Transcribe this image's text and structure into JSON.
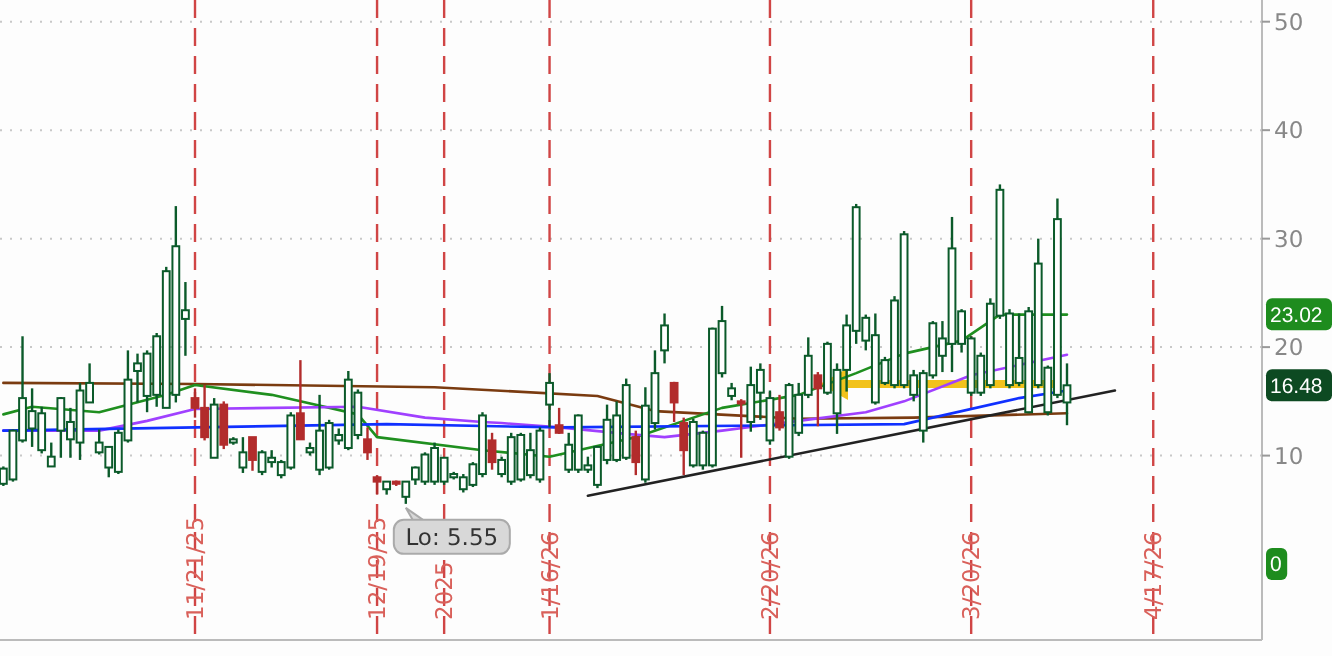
{
  "chart_data": {
    "type": "candlestick",
    "categories": [
      null,
      null,
      null,
      null,
      null,
      null,
      null,
      null,
      null,
      null,
      null,
      null,
      null,
      null,
      null,
      null,
      null,
      null,
      null,
      null,
      "11/21/25",
      null,
      null,
      null,
      null,
      null,
      null,
      null,
      null,
      null,
      null,
      null,
      null,
      null,
      null,
      null,
      null,
      null,
      null,
      "12/19/25",
      null,
      null,
      null,
      null,
      null,
      null,
      "2025",
      null,
      null,
      null,
      null,
      null,
      null,
      null,
      null,
      null,
      null,
      "1/16/26",
      null,
      null,
      null,
      null,
      null,
      null,
      null,
      null,
      null,
      null,
      null,
      null,
      null,
      null,
      null,
      null,
      null,
      null,
      null,
      null,
      null,
      null,
      "2/20/26",
      null,
      null,
      null,
      null,
      null,
      null,
      null,
      null,
      null,
      null,
      null,
      null,
      null,
      null,
      null,
      null,
      null,
      null,
      null,
      null,
      "3/20/26",
      null,
      null,
      null,
      null,
      null,
      null,
      null,
      null,
      null,
      null,
      null,
      null,
      null,
      null,
      null,
      null,
      null,
      null,
      "4/17/26",
      null,
      null,
      null,
      null,
      null,
      null,
      null,
      null,
      null,
      null,
      null
    ],
    "ohlc": [
      [
        7.4,
        9.0,
        7.2,
        8.8
      ],
      [
        7.8,
        12.4,
        7.6,
        12.3
      ],
      [
        11.4,
        21,
        11.2,
        15.3
      ],
      [
        12.5,
        16.2,
        10.8,
        14.1
      ],
      [
        10.5,
        14.5,
        10.2,
        13.9
      ],
      [
        9.0,
        11.2,
        9.0,
        9.9
      ],
      [
        12.3,
        15.4,
        9.8,
        15.3
      ],
      [
        11.5,
        14.4,
        9.8,
        13.1
      ],
      [
        11.2,
        16.7,
        9.6,
        16.0
      ],
      [
        14.9,
        18.5,
        14.9,
        16.7
      ],
      [
        10.3,
        12.4,
        10.1,
        11.2
      ],
      [
        8.9,
        10.8,
        8.0,
        10.8
      ],
      [
        8.5,
        12.4,
        8.3,
        12.1
      ],
      [
        11.4,
        19.7,
        11.2,
        17.0
      ],
      [
        17.8,
        19.4,
        14.9,
        18.5
      ],
      [
        15.5,
        19.7,
        14.0,
        19.4
      ],
      [
        15.6,
        21.3,
        14.5,
        21.0
      ],
      [
        14.4,
        27.4,
        14.4,
        27.0
      ],
      [
        15.6,
        33.0,
        14.9,
        29.3
      ],
      [
        22.6,
        26.0,
        19.2,
        23.4
      ],
      [
        15.3,
        16.2,
        13.5,
        14.4
      ],
      [
        14.4,
        16.5,
        11.4,
        11.7
      ],
      [
        9.8,
        15.3,
        9.8,
        14.7
      ],
      [
        14.7,
        15.0,
        10.6,
        11.0
      ],
      [
        11.2,
        11.7,
        11.0,
        11.5
      ],
      [
        8.9,
        11.7,
        8.4,
        10.3
      ],
      [
        11.7,
        11.7,
        8.6,
        9.6
      ],
      [
        8.5,
        10.5,
        8.2,
        10.3
      ],
      [
        9.4,
        10.5,
        8.9,
        9.8
      ],
      [
        8.2,
        9.6,
        7.9,
        9.4
      ],
      [
        8.9,
        14.0,
        8.7,
        13.7
      ],
      [
        13.9,
        18.8,
        11.5,
        11.5
      ],
      [
        10.3,
        11.2,
        10.0,
        10.7
      ],
      [
        8.7,
        15.6,
        8.2,
        12.3
      ],
      [
        8.9,
        13.3,
        8.7,
        13.0
      ],
      [
        11.4,
        12.5,
        11.0,
        11.9
      ],
      [
        10.7,
        17.8,
        10.5,
        17.0
      ],
      [
        11.9,
        16.1,
        11.5,
        15.8
      ],
      [
        11.5,
        12.6,
        9.6,
        10.3
      ],
      [
        8.0,
        8.2,
        6.4,
        7.6
      ],
      [
        6.9,
        7.6,
        6.4,
        7.6
      ],
      [
        7.6,
        7.7,
        7.2,
        7.4
      ],
      [
        6.2,
        7.6,
        5.55,
        7.6
      ],
      [
        7.8,
        9.0,
        7.3,
        8.9
      ],
      [
        7.6,
        10.3,
        7.3,
        10.1
      ],
      [
        7.6,
        11.2,
        7.3,
        10.7
      ],
      [
        7.6,
        9.8,
        7.3,
        9.8
      ],
      [
        8.0,
        8.5,
        7.8,
        8.3
      ],
      [
        6.9,
        8.3,
        6.6,
        8.0
      ],
      [
        7.3,
        9.4,
        7.1,
        9.2
      ],
      [
        8.3,
        14.0,
        8.0,
        13.7
      ],
      [
        11.4,
        12.1,
        8.7,
        9.4
      ],
      [
        8.3,
        9.9,
        8.0,
        9.6
      ],
      [
        7.6,
        12.1,
        7.3,
        11.7
      ],
      [
        7.8,
        12.1,
        7.6,
        11.9
      ],
      [
        8.2,
        12.1,
        7.9,
        10.5
      ],
      [
        7.8,
        12.6,
        7.5,
        12.3
      ],
      [
        14.7,
        17.6,
        12.6,
        16.7
      ],
      [
        12.8,
        14.4,
        12.0,
        12.1
      ],
      [
        8.7,
        12.1,
        8.4,
        11.0
      ],
      [
        8.7,
        13.8,
        8.4,
        13.7
      ],
      [
        8.7,
        9.9,
        8.4,
        9.1
      ],
      [
        7.3,
        10.9,
        7.0,
        10.8
      ],
      [
        9.6,
        14.7,
        9.2,
        13.3
      ],
      [
        9.6,
        15.0,
        9.4,
        13.7
      ],
      [
        9.8,
        17.1,
        9.6,
        16.5
      ],
      [
        11.7,
        12.3,
        8.2,
        9.4
      ],
      [
        7.8,
        16.3,
        7.5,
        14.6
      ],
      [
        13.0,
        19.7,
        12.4,
        17.6
      ],
      [
        19.7,
        23.1,
        18.5,
        22.0
      ],
      [
        16.7,
        16.8,
        13.1,
        14.9
      ],
      [
        13.0,
        13.5,
        8.2,
        10.5
      ],
      [
        9.1,
        13.4,
        8.9,
        13.1
      ],
      [
        9.1,
        12.3,
        8.7,
        12.1
      ],
      [
        9.1,
        21.8,
        8.9,
        21.7
      ],
      [
        17.6,
        23.8,
        17.2,
        22.4
      ],
      [
        15.5,
        16.7,
        15.1,
        16.2
      ],
      [
        15.0,
        15.2,
        9.8,
        14.8
      ],
      [
        13.1,
        18.2,
        12.2,
        16.5
      ],
      [
        15.8,
        18.5,
        13.3,
        17.9
      ],
      [
        11.4,
        16.0,
        11.0,
        15.3
      ],
      [
        14.0,
        15.6,
        12.3,
        12.6
      ],
      [
        9.9,
        16.7,
        9.7,
        16.5
      ],
      [
        12.1,
        16.7,
        11.8,
        15.6
      ],
      [
        15.6,
        20.9,
        15.3,
        19.2
      ],
      [
        17.4,
        17.7,
        12.7,
        16.2
      ],
      [
        15.8,
        20.5,
        15.6,
        20.3
      ],
      [
        13.9,
        18.5,
        12.0,
        17.9
      ],
      [
        17.9,
        23.0,
        15.9,
        22.0
      ],
      [
        21.5,
        33.2,
        20.3,
        32.9
      ],
      [
        20.6,
        23.0,
        19.7,
        22.7
      ],
      [
        14.9,
        23.1,
        14.7,
        21.1
      ],
      [
        16.7,
        19.1,
        16.5,
        18.8
      ],
      [
        16.5,
        24.7,
        16.2,
        24.3
      ],
      [
        16.5,
        30.7,
        16.2,
        30.4
      ],
      [
        15.6,
        17.9,
        15.0,
        17.4
      ],
      [
        12.3,
        17.9,
        11.2,
        17.6
      ],
      [
        17.4,
        22.4,
        17.1,
        22.2
      ],
      [
        19.2,
        22.4,
        17.7,
        20.8
      ],
      [
        20.3,
        32.0,
        17.7,
        29.1
      ],
      [
        20.3,
        23.5,
        19.5,
        23.3
      ],
      [
        15.8,
        21.0,
        15.5,
        20.8
      ],
      [
        15.8,
        19.5,
        15.5,
        19.2
      ],
      [
        16.5,
        24.5,
        16.2,
        24.0
      ],
      [
        22.9,
        35.0,
        22.6,
        34.5
      ],
      [
        16.5,
        23.5,
        16.2,
        23.1
      ],
      [
        16.7,
        23.1,
        16.4,
        19.0
      ],
      [
        14.0,
        23.7,
        13.9,
        23.3
      ],
      [
        16.5,
        30.0,
        16.2,
        27.7
      ],
      [
        14.0,
        18.3,
        13.7,
        18.1
      ],
      [
        15.6,
        33.7,
        15.3,
        31.8
      ],
      [
        14.9,
        18.5,
        12.8,
        16.48
      ],
      null,
      null,
      null,
      null,
      null,
      null,
      null,
      null,
      null,
      null,
      null,
      null,
      null,
      null,
      null,
      null,
      null,
      null,
      null,
      null
    ],
    "series": [
      {
        "type": "line",
        "color": "#7a3b10",
        "values": [
          16.7,
          null,
          null,
          null,
          null,
          null,
          null,
          null,
          null,
          null,
          null,
          null,
          null,
          null,
          null,
          null,
          null,
          null,
          null,
          null,
          16.6,
          null,
          null,
          null,
          null,
          null,
          null,
          null,
          null,
          null,
          null,
          null,
          null,
          null,
          null,
          null,
          null,
          null,
          null,
          null,
          null,
          null,
          null,
          null,
          null,
          16.3,
          null,
          null,
          null,
          null,
          null,
          null,
          null,
          null,
          null,
          null,
          null,
          null,
          null,
          null,
          null,
          null,
          15.5,
          null,
          null,
          null,
          null,
          null,
          14.1,
          null,
          null,
          null,
          null,
          null,
          null,
          null,
          null,
          null,
          null,
          null,
          null,
          null,
          null,
          13.4,
          null,
          null,
          null,
          null,
          null,
          null,
          null,
          null,
          null,
          null,
          null,
          13.5,
          null,
          null,
          null,
          null,
          null,
          null,
          null,
          null,
          null,
          null,
          null,
          null,
          null,
          null,
          null,
          13.9,
          null,
          null,
          null,
          null,
          null,
          null,
          null,
          null,
          null,
          null,
          null,
          null,
          null,
          null,
          null,
          null,
          null,
          null,
          null,
          null
        ]
      },
      {
        "type": "line",
        "color": "#1f8f1f",
        "values": [
          13.8,
          null,
          null,
          14.5,
          null,
          null,
          null,
          null,
          null,
          null,
          14.0,
          null,
          null,
          null,
          null,
          null,
          null,
          15.6,
          null,
          null,
          16.5,
          null,
          null,
          null,
          null,
          null,
          null,
          null,
          15.6,
          null,
          null,
          15.0,
          null,
          null,
          null,
          null,
          null,
          13.8,
          null,
          11.7,
          null,
          null,
          null,
          null,
          null,
          null,
          null,
          null,
          null,
          null,
          10.5,
          null,
          null,
          null,
          null,
          null,
          null,
          9.9,
          null,
          null,
          null,
          null,
          null,
          null,
          null,
          null,
          11.7,
          null,
          null,
          null,
          null,
          null,
          null,
          null,
          null,
          14.4,
          null,
          null,
          null,
          null,
          null,
          null,
          null,
          15.6,
          null,
          null,
          null,
          null,
          null,
          17.6,
          null,
          null,
          null,
          null,
          19.4,
          null,
          null,
          null,
          null,
          null,
          20.6,
          null,
          null,
          null,
          23.0,
          null,
          null,
          null,
          null,
          null,
          null,
          23.0,
          null,
          null,
          null,
          null,
          null,
          null,
          null,
          null,
          null,
          null,
          null,
          null,
          null,
          null,
          null,
          null,
          null,
          null,
          null,
          null
        ]
      },
      {
        "type": "line",
        "color": "#a040ff",
        "values": [
          12.3,
          null,
          null,
          null,
          null,
          null,
          null,
          null,
          null,
          null,
          12.3,
          null,
          null,
          null,
          null,
          13.2,
          null,
          null,
          null,
          null,
          14.3,
          null,
          null,
          null,
          null,
          null,
          null,
          null,
          null,
          null,
          null,
          null,
          null,
          null,
          null,
          null,
          null,
          14.5,
          null,
          null,
          null,
          null,
          null,
          null,
          13.5,
          null,
          null,
          null,
          null,
          null,
          13.1,
          null,
          13.0,
          null,
          null,
          null,
          null,
          null,
          12.6,
          null,
          null,
          null,
          null,
          null,
          null,
          12.0,
          null,
          null,
          null,
          11.7,
          null,
          null,
          null,
          null,
          null,
          12.3,
          null,
          null,
          null,
          null,
          null,
          null,
          null,
          13.2,
          null,
          null,
          null,
          null,
          null,
          null,
          14.0,
          null,
          null,
          null,
          15.0,
          null,
          null,
          null,
          null,
          null,
          null,
          17.4,
          null,
          null,
          null,
          null,
          null,
          null,
          null,
          null,
          null,
          19.3,
          null,
          null,
          null,
          null,
          null,
          null,
          null,
          null,
          null,
          null,
          null,
          null,
          null,
          null,
          null,
          null,
          null,
          null,
          null,
          null
        ]
      },
      {
        "type": "line",
        "color": "#1030ff",
        "values": [
          12.3,
          null,
          null,
          null,
          null,
          null,
          null,
          null,
          null,
          null,
          null,
          null,
          null,
          null,
          null,
          null,
          null,
          null,
          null,
          null,
          null,
          null,
          null,
          null,
          null,
          null,
          null,
          null,
          null,
          null,
          null,
          null,
          null,
          null,
          null,
          null,
          null,
          null,
          null,
          null,
          12.9,
          null,
          null,
          null,
          null,
          null,
          null,
          null,
          null,
          null,
          null,
          null,
          null,
          null,
          null,
          null,
          null,
          null,
          12.6,
          null,
          null,
          null,
          null,
          null,
          null,
          null,
          null,
          null,
          null,
          null,
          null,
          null,
          null,
          null,
          null,
          null,
          null,
          null,
          null,
          null,
          null,
          null,
          null,
          null,
          null,
          null,
          null,
          null,
          null,
          null,
          null,
          null,
          null,
          null,
          12.9,
          null,
          null,
          null,
          null,
          null,
          null,
          null,
          null,
          null,
          null,
          null,
          15.3,
          null,
          null,
          null,
          null,
          16.0,
          null,
          null,
          null,
          null,
          null,
          null,
          null,
          null,
          null,
          null,
          null,
          null,
          null,
          null,
          null,
          null,
          null,
          null,
          null,
          null
        ]
      },
      {
        "type": "line",
        "color": "#222222",
        "values": [
          null,
          null,
          null,
          null,
          null,
          null,
          null,
          null,
          null,
          null,
          null,
          null,
          null,
          null,
          null,
          null,
          null,
          null,
          null,
          null,
          null,
          null,
          null,
          null,
          null,
          null,
          null,
          null,
          null,
          null,
          null,
          null,
          null,
          null,
          null,
          null,
          null,
          null,
          null,
          null,
          null,
          null,
          null,
          null,
          null,
          null,
          null,
          null,
          null,
          null,
          null,
          null,
          null,
          null,
          null,
          null,
          null,
          null,
          null,
          null,
          null,
          6.3,
          null,
          null,
          null,
          null,
          null,
          null,
          null,
          null,
          null,
          null,
          null,
          null,
          null,
          null,
          null,
          null,
          null,
          null,
          null,
          null,
          null,
          null,
          null,
          null,
          null,
          null,
          null,
          null,
          null,
          null,
          null,
          null,
          null,
          null,
          null,
          null,
          null,
          null,
          null,
          null,
          null,
          null,
          null,
          null,
          null,
          null,
          null,
          null,
          null,
          null,
          null,
          null,
          null,
          null,
          16.0,
          null,
          null,
          null,
          null,
          null,
          null,
          null,
          null,
          null,
          null,
          null,
          null,
          null,
          null,
          null
        ]
      }
    ],
    "annotations": [
      "Lo: 5.55",
      {
        "text": "23.02",
        "y": 23.02
      },
      {
        "text": "16.48",
        "y": 16.48
      },
      {
        "text": "0",
        "y": 0
      }
    ],
    "ylim": [
      -7,
      52
    ],
    "yticks": [
      10,
      20,
      30,
      40,
      50
    ],
    "grid": "y"
  }
}
